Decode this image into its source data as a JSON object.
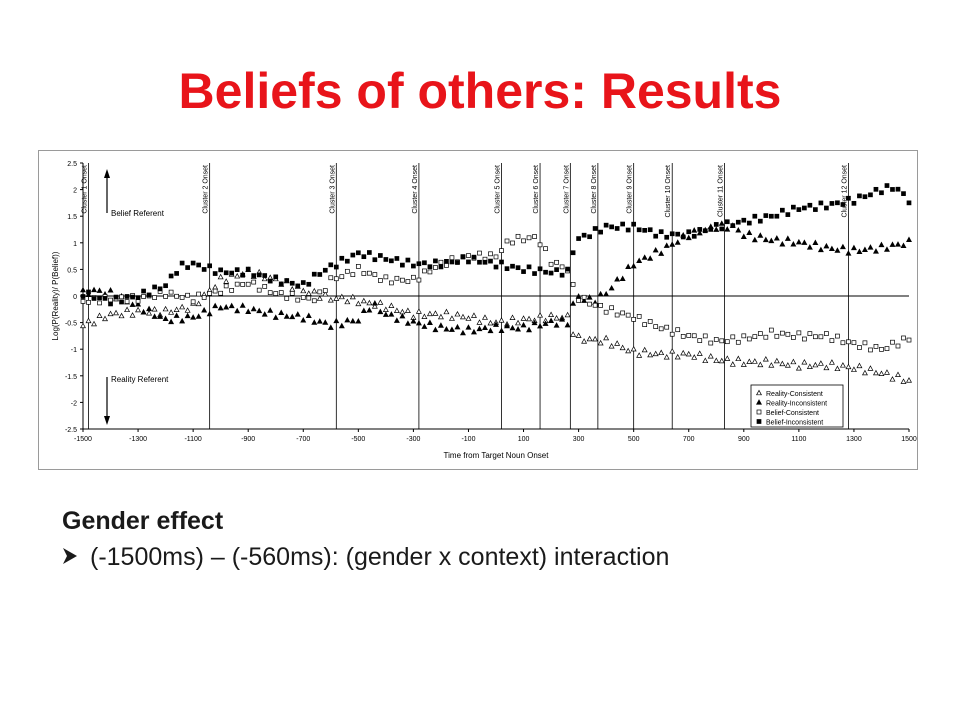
{
  "slide": {
    "title": "Beliefs of others: Results",
    "heading": "Gender effect",
    "bullet_text": "(-1500ms) – (-560ms): (gender x context) interaction"
  },
  "colors": {
    "title": "#e8141a",
    "text": "#1a1a1a"
  },
  "chart_data": {
    "type": "scatter",
    "xlabel": "Time from Target Noun Onset",
    "ylabel": "Log(P(Reality)/ P(Belief))",
    "xlim": [
      -1500,
      1500
    ],
    "ylim": [
      -2.5,
      2.5
    ],
    "xticks": [
      -1500,
      -1300,
      -1100,
      -900,
      -700,
      -500,
      -300,
      -100,
      100,
      300,
      500,
      700,
      900,
      1100,
      1300,
      1500
    ],
    "yticks": [
      2.5,
      2,
      1.5,
      1,
      0.5,
      0,
      -0.5,
      -1,
      -1.5,
      -2,
      -2.5
    ],
    "grid": false,
    "legend_position": "bottom-right",
    "annotations": {
      "upper": "Belief Referent",
      "lower": "Reality Referent"
    },
    "clusters": [
      {
        "label": "Cluster 1 Onset",
        "x": -1480
      },
      {
        "label": "Cluster 2 Onset",
        "x": -1040
      },
      {
        "label": "Cluster 3 Onset",
        "x": -580
      },
      {
        "label": "Cluster 4 Onset",
        "x": -280
      },
      {
        "label": "Cluster 5 Onset",
        "x": 20
      },
      {
        "label": "Cluster 6 Onset",
        "x": 160
      },
      {
        "label": "Cluster 7 Onset",
        "x": 270
      },
      {
        "label": "Cluster 8 Onset",
        "x": 370
      },
      {
        "label": "Cluster 9 Onset",
        "x": 500
      },
      {
        "label": "Cluster 10 Onset",
        "x": 640
      },
      {
        "label": "Cluster 11 Onset",
        "x": 830
      },
      {
        "label": "Cluster 12 Onset",
        "x": 1280
      }
    ],
    "x_step": 20,
    "series": [
      {
        "name": "Reality-Consistent",
        "marker": "triangle-open",
        "knots": [
          [
            -1500,
            -0.55
          ],
          [
            -1450,
            -0.45
          ],
          [
            -1400,
            -0.35
          ],
          [
            -1300,
            -0.3
          ],
          [
            -1200,
            -0.3
          ],
          [
            -1100,
            -0.2
          ],
          [
            -1000,
            0.3
          ],
          [
            -900,
            0.45
          ],
          [
            -800,
            0.3
          ],
          [
            -700,
            0.1
          ],
          [
            -600,
            -0.05
          ],
          [
            -550,
            -0.05
          ],
          [
            -500,
            -0.1
          ],
          [
            -400,
            -0.2
          ],
          [
            -300,
            -0.35
          ],
          [
            -200,
            -0.35
          ],
          [
            -100,
            -0.4
          ],
          [
            0,
            -0.5
          ],
          [
            100,
            -0.45
          ],
          [
            200,
            -0.4
          ],
          [
            260,
            -0.4
          ],
          [
            290,
            -0.8
          ],
          [
            400,
            -0.85
          ],
          [
            500,
            -1.05
          ],
          [
            600,
            -1.1
          ],
          [
            700,
            -1.1
          ],
          [
            800,
            -1.2
          ],
          [
            900,
            -1.25
          ],
          [
            1000,
            -1.25
          ],
          [
            1100,
            -1.3
          ],
          [
            1200,
            -1.3
          ],
          [
            1300,
            -1.35
          ],
          [
            1400,
            -1.45
          ],
          [
            1500,
            -1.6
          ]
        ]
      },
      {
        "name": "Reality-Inconsistent",
        "marker": "triangle-filled",
        "knots": [
          [
            -1500,
            0.05
          ],
          [
            -1450,
            0.1
          ],
          [
            -1400,
            0.05
          ],
          [
            -1300,
            -0.2
          ],
          [
            -1200,
            -0.45
          ],
          [
            -1100,
            -0.4
          ],
          [
            -1000,
            -0.2
          ],
          [
            -900,
            -0.25
          ],
          [
            -800,
            -0.35
          ],
          [
            -700,
            -0.4
          ],
          [
            -600,
            -0.55
          ],
          [
            -500,
            -0.45
          ],
          [
            -450,
            -0.15
          ],
          [
            -400,
            -0.35
          ],
          [
            -300,
            -0.5
          ],
          [
            -200,
            -0.6
          ],
          [
            -100,
            -0.65
          ],
          [
            0,
            -0.6
          ],
          [
            100,
            -0.6
          ],
          [
            200,
            -0.5
          ],
          [
            260,
            -0.5
          ],
          [
            290,
            0.0
          ],
          [
            350,
            -0.1
          ],
          [
            400,
            0.05
          ],
          [
            500,
            0.6
          ],
          [
            600,
            0.85
          ],
          [
            700,
            1.15
          ],
          [
            800,
            1.3
          ],
          [
            860,
            1.3
          ],
          [
            900,
            1.15
          ],
          [
            1000,
            1.05
          ],
          [
            1100,
            1.0
          ],
          [
            1200,
            0.9
          ],
          [
            1300,
            0.85
          ],
          [
            1400,
            0.9
          ],
          [
            1500,
            1.0
          ]
        ]
      },
      {
        "name": "Belief-Consistent",
        "marker": "square-open",
        "knots": [
          [
            -1500,
            -0.1
          ],
          [
            -1400,
            -0.05
          ],
          [
            -1300,
            -0.05
          ],
          [
            -1200,
            0.05
          ],
          [
            -1100,
            -0.05
          ],
          [
            -1000,
            0.1
          ],
          [
            -900,
            0.25
          ],
          [
            -800,
            0.05
          ],
          [
            -700,
            -0.05
          ],
          [
            -650,
            -0.05
          ],
          [
            -600,
            0.3
          ],
          [
            -500,
            0.5
          ],
          [
            -400,
            0.3
          ],
          [
            -300,
            0.3
          ],
          [
            -200,
            0.6
          ],
          [
            -100,
            0.75
          ],
          [
            0,
            0.75
          ],
          [
            50,
            1.05
          ],
          [
            150,
            1.1
          ],
          [
            200,
            0.65
          ],
          [
            260,
            0.5
          ],
          [
            290,
            0.0
          ],
          [
            350,
            -0.15
          ],
          [
            400,
            -0.25
          ],
          [
            500,
            -0.4
          ],
          [
            600,
            -0.6
          ],
          [
            700,
            -0.75
          ],
          [
            800,
            -0.85
          ],
          [
            900,
            -0.8
          ],
          [
            1000,
            -0.7
          ],
          [
            1100,
            -0.75
          ],
          [
            1200,
            -0.75
          ],
          [
            1300,
            -0.9
          ],
          [
            1400,
            -1.0
          ],
          [
            1500,
            -0.8
          ]
        ]
      },
      {
        "name": "Belief-Inconsistent",
        "marker": "square-filled",
        "knots": [
          [
            -1500,
            0.05
          ],
          [
            -1400,
            -0.1
          ],
          [
            -1300,
            0.0
          ],
          [
            -1200,
            0.2
          ],
          [
            -1150,
            0.55
          ],
          [
            -1100,
            0.6
          ],
          [
            -1000,
            0.45
          ],
          [
            -900,
            0.45
          ],
          [
            -800,
            0.3
          ],
          [
            -700,
            0.2
          ],
          [
            -650,
            0.4
          ],
          [
            -600,
            0.55
          ],
          [
            -500,
            0.8
          ],
          [
            -400,
            0.7
          ],
          [
            -300,
            0.6
          ],
          [
            -200,
            0.6
          ],
          [
            -100,
            0.7
          ],
          [
            0,
            0.6
          ],
          [
            100,
            0.5
          ],
          [
            200,
            0.45
          ],
          [
            260,
            0.45
          ],
          [
            290,
            1.05
          ],
          [
            400,
            1.3
          ],
          [
            500,
            1.3
          ],
          [
            600,
            1.15
          ],
          [
            700,
            1.15
          ],
          [
            800,
            1.3
          ],
          [
            900,
            1.4
          ],
          [
            1000,
            1.5
          ],
          [
            1100,
            1.65
          ],
          [
            1200,
            1.7
          ],
          [
            1300,
            1.8
          ],
          [
            1400,
            2.0
          ],
          [
            1450,
            2.05
          ],
          [
            1500,
            1.8
          ]
        ]
      }
    ]
  }
}
